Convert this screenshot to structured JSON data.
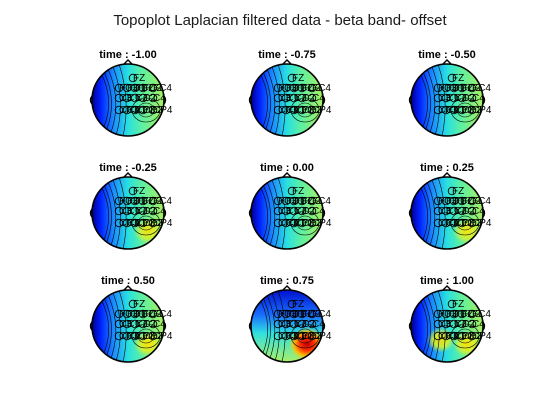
{
  "chart_data": {
    "type": "heatmap",
    "title": "Topoplot Laplacian filtered data - beta band- offset",
    "xlabel": "",
    "ylabel": "",
    "grid": false,
    "colormap": "jet",
    "electrodes": [
      "FZ",
      "FC3",
      "FC1",
      "FCZ",
      "FC2",
      "FC4",
      "C3",
      "C1",
      "CZ",
      "C2",
      "C4",
      "CP3",
      "CP1",
      "CPZ",
      "CP2",
      "CP4"
    ],
    "layout": {
      "rows": 3,
      "cols": 3
    },
    "panels": [
      {
        "title": "time : -1.00",
        "time": -1.0,
        "hotspots": []
      },
      {
        "title": "time : -0.75",
        "time": -0.75,
        "hotspots": []
      },
      {
        "title": "time : -0.50",
        "time": -0.5,
        "hotspots": []
      },
      {
        "title": "time : -0.25",
        "time": -0.25,
        "hotspots": [
          {
            "region": "right-posterior",
            "level": 0.7
          }
        ]
      },
      {
        "title": "time : 0.00",
        "time": 0.0,
        "hotspots": []
      },
      {
        "title": "time : 0.25",
        "time": 0.25,
        "hotspots": [
          {
            "region": "right-posterior",
            "level": 0.7
          }
        ]
      },
      {
        "title": "time : 0.50",
        "time": 0.5,
        "hotspots": [
          {
            "region": "right-posterior",
            "level": 0.75
          }
        ]
      },
      {
        "title": "time : 0.75",
        "time": 0.75,
        "hotspots": [
          {
            "region": "right-posterior",
            "level": 0.95
          }
        ]
      },
      {
        "title": "time : 1.00",
        "time": 1.0,
        "hotspots": [
          {
            "region": "right-posterior",
            "level": 0.75
          },
          {
            "region": "central-left",
            "level": 0.7
          }
        ]
      }
    ]
  }
}
